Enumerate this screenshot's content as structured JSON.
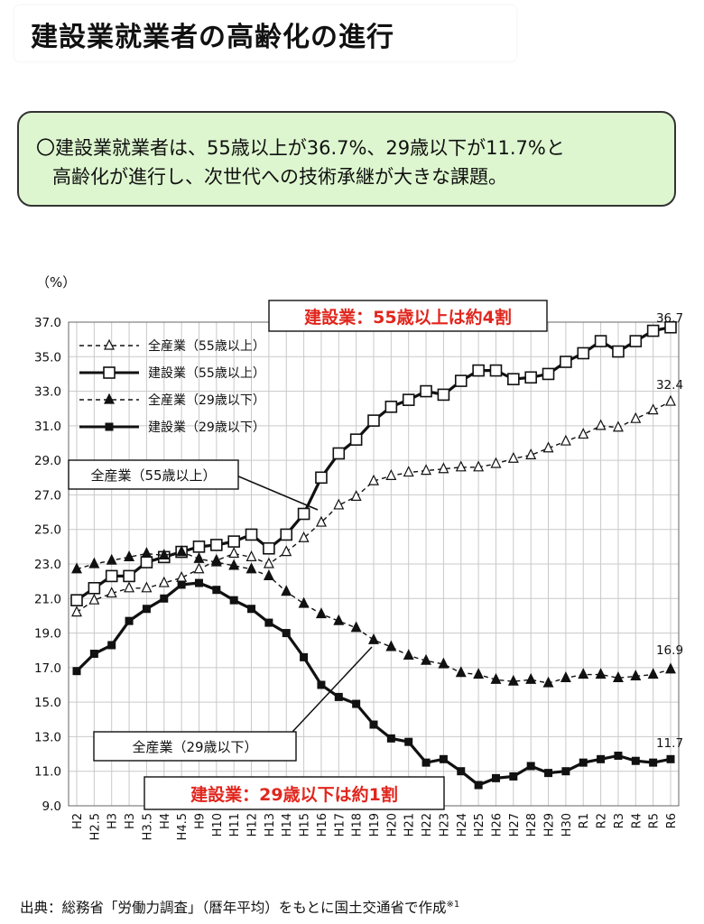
{
  "header": {
    "title": "建設業就業者の高齢化の進行"
  },
  "summary": {
    "line1": "〇建設業就業者は、55歳以上が36.7%、29歳以下が11.7%と",
    "line2": "高齢化が進行し、次世代への技術承継が大きな課題。"
  },
  "footer": {
    "source": "出典：総務省「労働力調査」（暦年平均）をもとに国土交通省で作成",
    "note_mark": "※1"
  },
  "colors": {
    "summary_bg": "#ddf6cf",
    "callout_red": "#e0261d",
    "line": "#111111",
    "grid": "#c9c9c9"
  },
  "chart_data": {
    "type": "line",
    "unit_label": "（%）",
    "ylim": [
      9.0,
      37.0
    ],
    "yticks": [
      "37.0",
      "35.0",
      "33.0",
      "31.0",
      "29.0",
      "27.0",
      "25.0",
      "23.0",
      "21.0",
      "19.0",
      "17.0",
      "15.0",
      "13.0",
      "11.0",
      "9.0"
    ],
    "grid": true,
    "legend_position": "top-left",
    "categories": [
      "H2",
      "H2.5",
      "H3",
      "H3",
      "H3.5",
      "H4",
      "H4.5",
      "H9",
      "H10",
      "H11",
      "H12",
      "H13",
      "H14",
      "H15",
      "H16",
      "H17",
      "H18",
      "H19",
      "H20",
      "H21",
      "H22",
      "H23",
      "H24",
      "H25",
      "H26",
      "H27",
      "H28",
      "H29",
      "H30",
      "R1",
      "R2",
      "R3",
      "R4",
      "R5",
      "R6"
    ],
    "series": [
      {
        "name": "全産業（55歳以上）",
        "style": "dashed",
        "marker": "triangle-open",
        "values": [
          20.2,
          20.9,
          21.3,
          21.6,
          21.6,
          21.9,
          22.2,
          22.7,
          23.2,
          23.6,
          23.4,
          23.0,
          23.7,
          24.5,
          25.4,
          26.4,
          26.9,
          27.8,
          28.1,
          28.3,
          28.4,
          28.5,
          28.6,
          28.6,
          28.8,
          29.1,
          29.3,
          29.7,
          30.1,
          30.5,
          31.0,
          30.9,
          31.4,
          31.9,
          32.4
        ]
      },
      {
        "name": "建設業（55歳以上）",
        "style": "solid",
        "marker": "square-open",
        "values": [
          20.9,
          21.6,
          22.3,
          22.3,
          23.1,
          23.4,
          23.7,
          24.0,
          24.1,
          24.3,
          24.7,
          23.9,
          24.7,
          25.9,
          28.0,
          29.4,
          30.2,
          31.3,
          32.1,
          32.5,
          33.0,
          32.8,
          33.6,
          34.2,
          34.2,
          33.7,
          33.8,
          34.0,
          34.7,
          35.2,
          35.9,
          35.3,
          35.9,
          36.5,
          36.7
        ]
      },
      {
        "name": "全産業（29歳以下）",
        "style": "dashed",
        "marker": "triangle-filled",
        "values": [
          22.7,
          23.0,
          23.2,
          23.4,
          23.6,
          23.5,
          23.7,
          23.3,
          23.1,
          22.9,
          22.7,
          22.3,
          21.4,
          20.7,
          20.1,
          19.7,
          19.3,
          18.6,
          18.2,
          17.7,
          17.4,
          17.2,
          16.7,
          16.6,
          16.3,
          16.2,
          16.3,
          16.1,
          16.4,
          16.6,
          16.6,
          16.4,
          16.5,
          16.6,
          16.9
        ]
      },
      {
        "name": "建設業（29歳以下）",
        "style": "solid",
        "marker": "square-filled",
        "values": [
          16.8,
          17.8,
          18.3,
          19.7,
          20.4,
          21.0,
          21.8,
          21.9,
          21.5,
          20.9,
          20.4,
          19.6,
          19.0,
          17.6,
          16.0,
          15.3,
          14.9,
          13.7,
          12.9,
          12.7,
          11.5,
          11.7,
          11.0,
          10.2,
          10.6,
          10.7,
          11.3,
          10.9,
          11.0,
          11.5,
          11.7,
          11.9,
          11.6,
          11.5,
          11.7
        ]
      }
    ],
    "end_labels": [
      "36.7",
      "32.4",
      "16.9",
      "11.7"
    ],
    "annotations": {
      "top_callout": "建設業：55歳以上は約4割",
      "bottom_callout": "建設業：29歳以下は約1割",
      "box_55": "全産業（55歳以上）",
      "box_29": "全産業（29歳以下）"
    }
  }
}
